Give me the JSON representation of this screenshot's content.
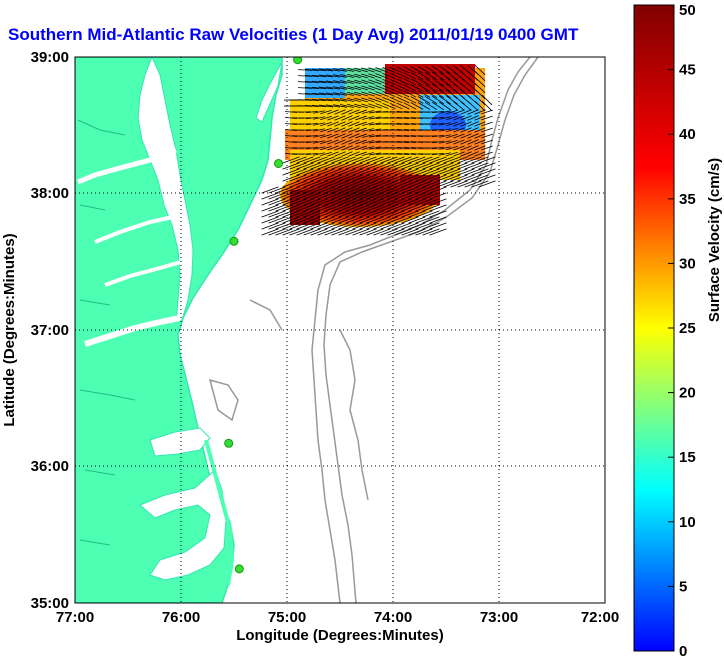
{
  "title": "Southern Mid-Atlantic Raw Velocities (1 Day Avg) 2011/01/19 0400 GMT",
  "x_axis": {
    "label": "Longitude (Degrees:Minutes)",
    "ticks": [
      "77:00",
      "76:00",
      "75:00",
      "74:00",
      "73:00",
      "72:00"
    ]
  },
  "y_axis": {
    "label": "Latitude (Degrees:Minutes)",
    "ticks": [
      "39:00",
      "38:00",
      "37:00",
      "36:00",
      "35:00"
    ]
  },
  "colorbar": {
    "label": "Surface Velocity (cm/s)",
    "range": [
      0,
      50
    ],
    "ticks": [
      "50",
      "45",
      "40",
      "35",
      "30",
      "25",
      "20",
      "15",
      "10",
      "5",
      "0"
    ]
  },
  "map": {
    "extent": {
      "lon": [
        -77,
        -72
      ],
      "lat": [
        35,
        39
      ]
    },
    "grid": true,
    "colors": {
      "land": "#4dffb3",
      "land_outline": "#33e6b0",
      "ocean": "#ffffff",
      "bathymetry": "#999999",
      "station": "#33dd33",
      "vectors": "#000000"
    },
    "stations": [
      {
        "lon": -74.9,
        "lat": 38.98
      },
      {
        "lon": -75.08,
        "lat": 38.22
      },
      {
        "lon": -75.5,
        "lat": 37.65
      },
      {
        "lon": -75.55,
        "lat": 36.17
      },
      {
        "lon": -75.45,
        "lat": 35.25
      }
    ]
  }
}
